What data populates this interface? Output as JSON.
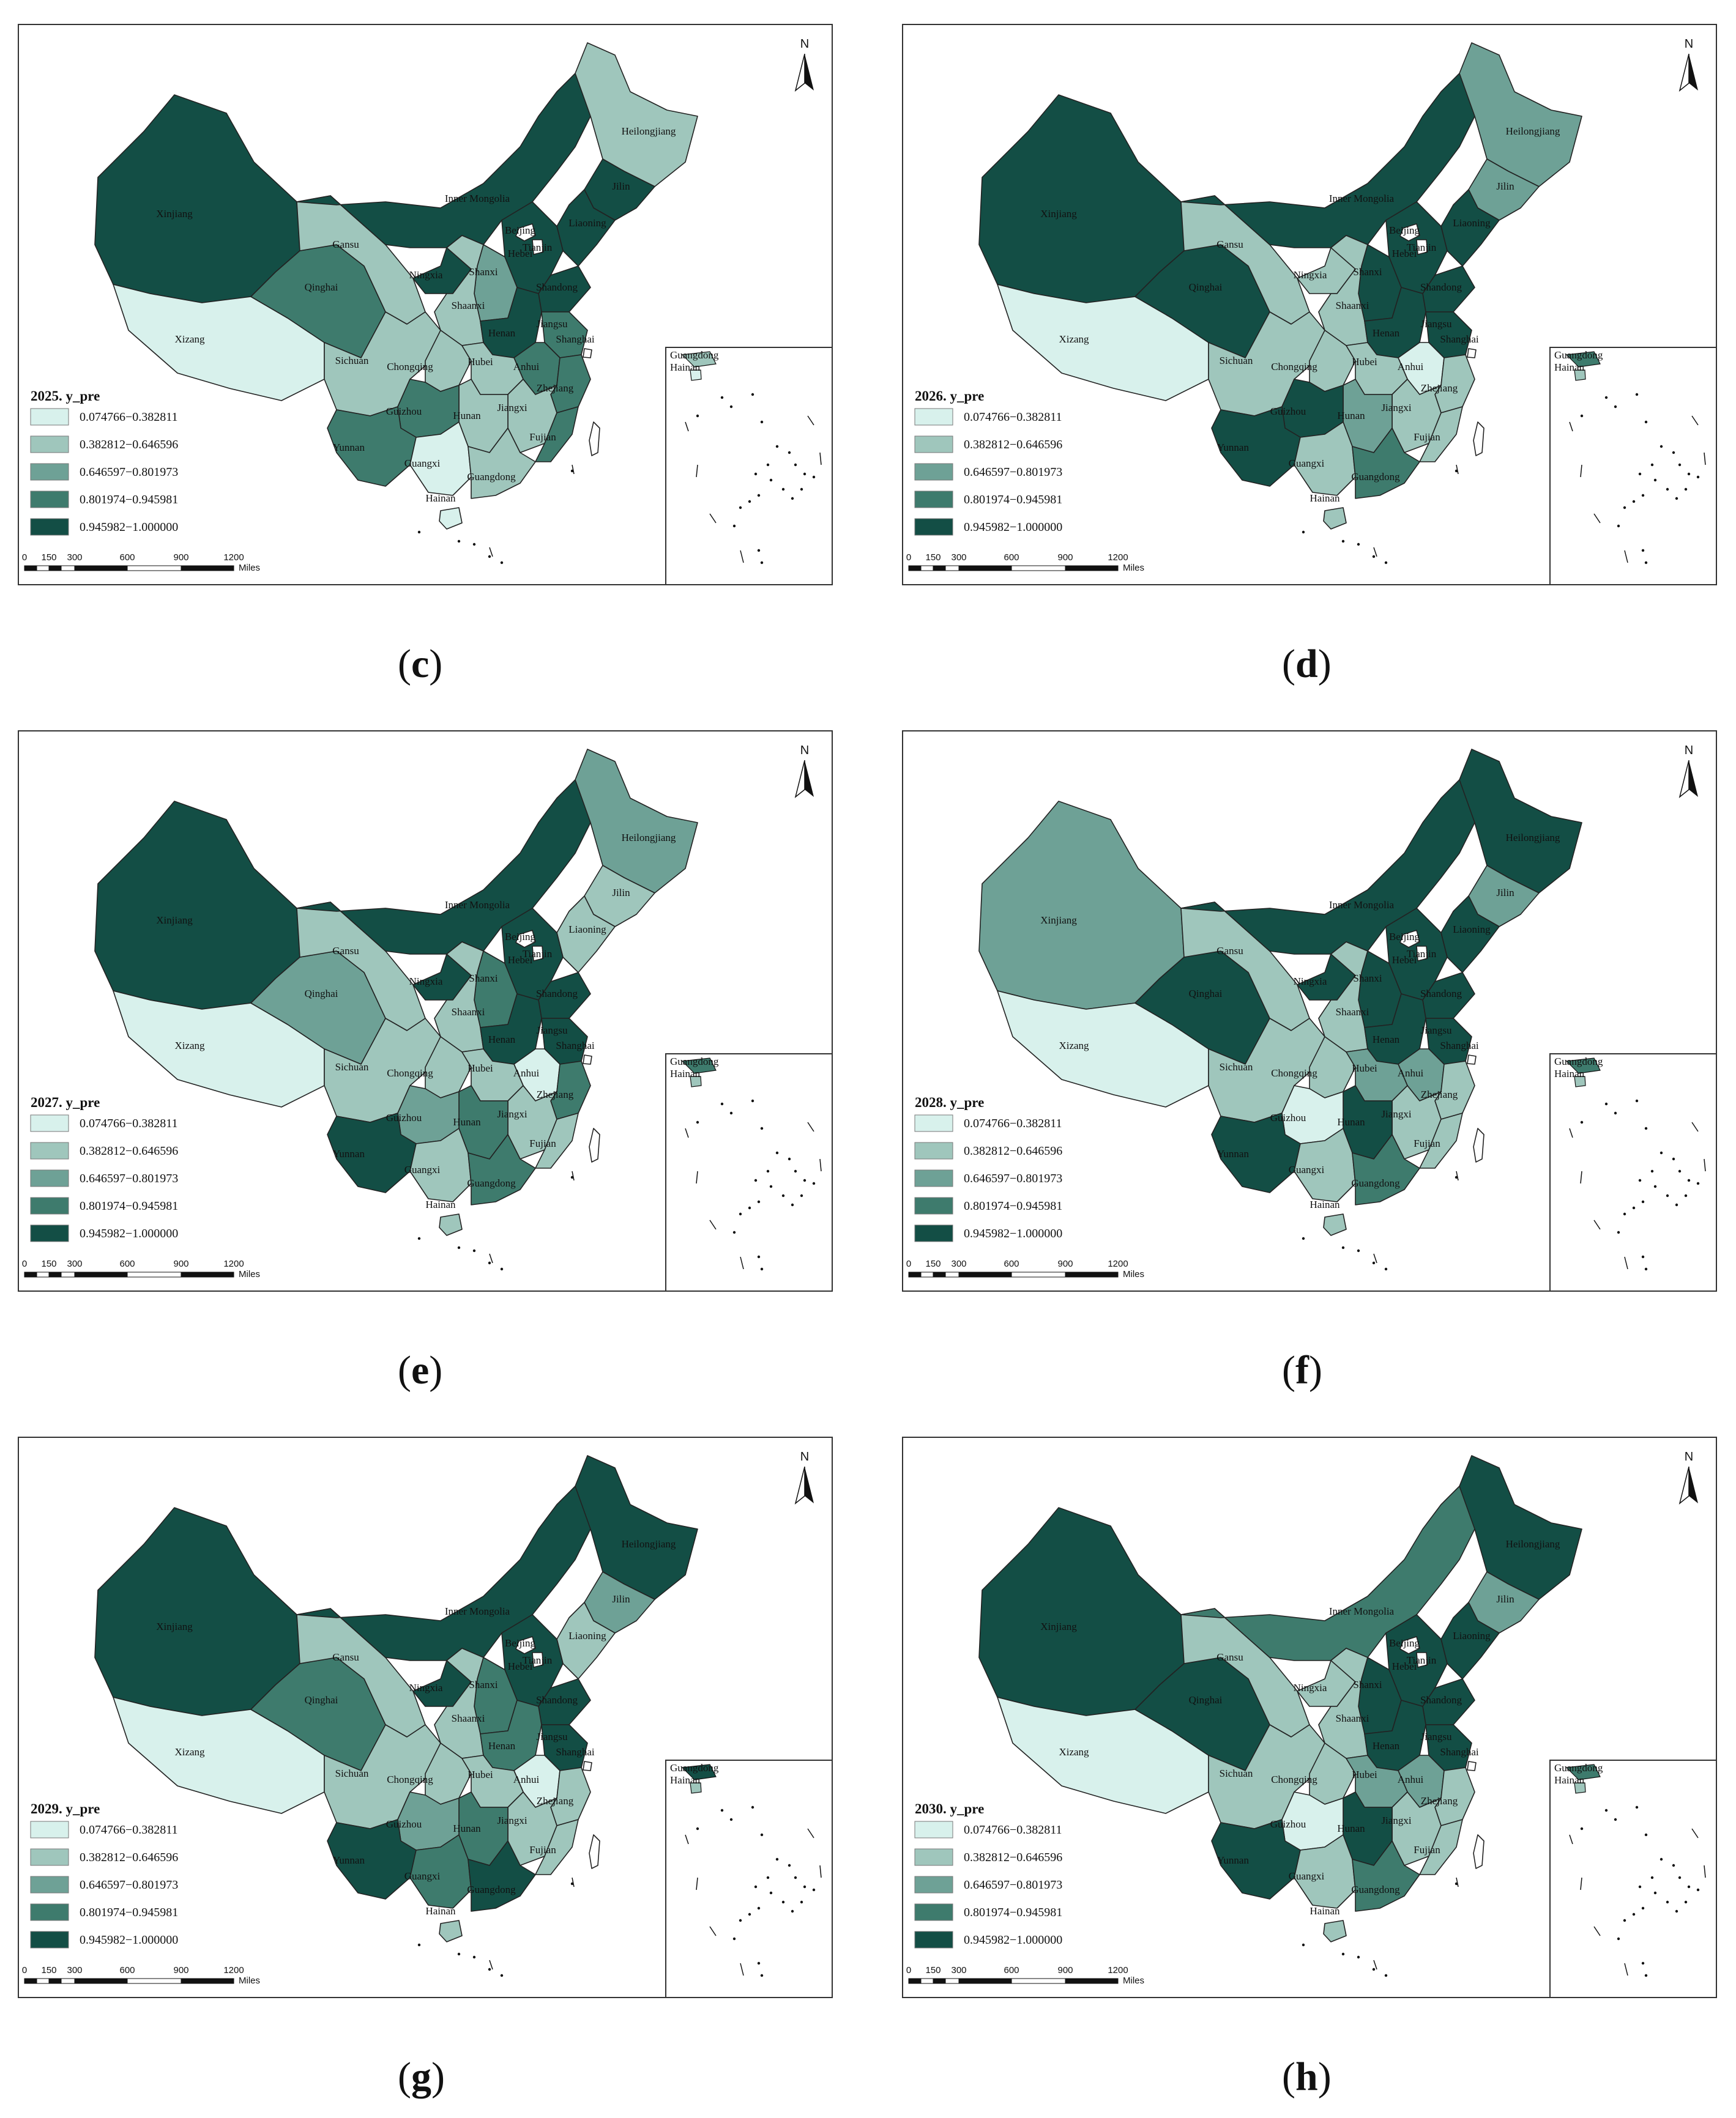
{
  "colors": {
    "c1": "#d8f1ec",
    "c2": "#9fc6bc",
    "c3": "#6ea196",
    "c4": "#3e7b6d",
    "c5": "#134e45",
    "stroke": "#222222"
  },
  "legend_ranges": [
    "0.074766−0.382811",
    "0.382812−0.646596",
    "0.646597−0.801973",
    "0.801974−0.945981",
    "0.945982−1.000000"
  ],
  "scale_ticks": [
    "0",
    "150",
    "300",
    "600",
    "900",
    "1200"
  ],
  "scale_unit": "Miles",
  "north_label": "N",
  "inset_labels": [
    "Guangdong",
    "Hainan"
  ],
  "province_labels": [
    "Xinjiang",
    "Xizang",
    "Qinghai",
    "Gansu",
    "Inner Mongolia",
    "Heilongjiang",
    "Jilin",
    "Liaoning",
    "Beijing",
    "Tianjin",
    "Hebei",
    "Shanxi",
    "Shandong",
    "Ningxia",
    "Shaanxi",
    "Henan",
    "Jiangsu",
    "Anhui",
    "Shanghai",
    "Sichuan",
    "Chongqing",
    "Hubei",
    "Zhejiang",
    "Jiangxi",
    "Hunan",
    "Guizhou",
    "Fujian",
    "Yunnan",
    "Guangxi",
    "Guangdong",
    "Hainan"
  ],
  "panels": [
    {
      "letter": "c",
      "title": "2025. y_pre",
      "classes": {
        "Xinjiang": 5,
        "Xizang": 1,
        "Qinghai": 4,
        "Gansu": 2,
        "Inner Mongolia": 5,
        "Heilongjiang": 2,
        "Jilin": 5,
        "Liaoning": 5,
        "Hebei": 5,
        "Shanxi": 3,
        "Shandong": 5,
        "Ningxia": 5,
        "Shaanxi": 2,
        "Henan": 5,
        "Jiangsu": 4,
        "Anhui": 4,
        "Sichuan": 2,
        "Chongqing": 2,
        "Hubei": 2,
        "Zhejiang": 4,
        "Jiangxi": 2,
        "Hunan": 2,
        "Guizhou": 4,
        "Fujian": 4,
        "Yunnan": 4,
        "Guangxi": 1,
        "Guangdong": 2,
        "Hainan": 1
      }
    },
    {
      "letter": "d",
      "title": "2026. y_pre",
      "classes": {
        "Xinjiang": 5,
        "Xizang": 1,
        "Qinghai": 5,
        "Gansu": 2,
        "Inner Mongolia": 5,
        "Heilongjiang": 3,
        "Jilin": 3,
        "Liaoning": 5,
        "Hebei": 5,
        "Shanxi": 5,
        "Shandong": 5,
        "Ningxia": 2,
        "Shaanxi": 2,
        "Henan": 5,
        "Jiangsu": 5,
        "Anhui": 1,
        "Sichuan": 2,
        "Chongqing": 2,
        "Hubei": 2,
        "Zhejiang": 2,
        "Jiangxi": 2,
        "Hunan": 3,
        "Guizhou": 5,
        "Fujian": 2,
        "Yunnan": 5,
        "Guangxi": 2,
        "Guangdong": 4,
        "Hainan": 2
      }
    },
    {
      "letter": "e",
      "title": "2027. y_pre",
      "classes": {
        "Xinjiang": 5,
        "Xizang": 1,
        "Qinghai": 3,
        "Gansu": 2,
        "Inner Mongolia": 5,
        "Heilongjiang": 3,
        "Jilin": 2,
        "Liaoning": 2,
        "Hebei": 5,
        "Shanxi": 4,
        "Shandong": 5,
        "Ningxia": 5,
        "Shaanxi": 2,
        "Henan": 5,
        "Jiangsu": 5,
        "Anhui": 1,
        "Sichuan": 2,
        "Chongqing": 2,
        "Hubei": 2,
        "Zhejiang": 4,
        "Jiangxi": 2,
        "Hunan": 4,
        "Guizhou": 3,
        "Fujian": 2,
        "Yunnan": 5,
        "Guangxi": 2,
        "Guangdong": 4,
        "Hainan": 2
      }
    },
    {
      "letter": "f",
      "title": "2028. y_pre",
      "classes": {
        "Xinjiang": 3,
        "Xizang": 1,
        "Qinghai": 5,
        "Gansu": 2,
        "Inner Mongolia": 5,
        "Heilongjiang": 5,
        "Jilin": 3,
        "Liaoning": 5,
        "Hebei": 5,
        "Shanxi": 5,
        "Shandong": 5,
        "Ningxia": 5,
        "Shaanxi": 2,
        "Henan": 5,
        "Jiangsu": 5,
        "Anhui": 3,
        "Sichuan": 2,
        "Chongqing": 2,
        "Hubei": 3,
        "Zhejiang": 2,
        "Jiangxi": 2,
        "Hunan": 5,
        "Guizhou": 1,
        "Fujian": 2,
        "Yunnan": 5,
        "Guangxi": 2,
        "Guangdong": 4,
        "Hainan": 2
      }
    },
    {
      "letter": "g",
      "title": "2029. y_pre",
      "classes": {
        "Xinjiang": 5,
        "Xizang": 1,
        "Qinghai": 4,
        "Gansu": 2,
        "Inner Mongolia": 5,
        "Heilongjiang": 5,
        "Jilin": 3,
        "Liaoning": 2,
        "Hebei": 5,
        "Shanxi": 4,
        "Shandong": 5,
        "Ningxia": 5,
        "Shaanxi": 2,
        "Henan": 4,
        "Jiangsu": 5,
        "Anhui": 1,
        "Sichuan": 2,
        "Chongqing": 2,
        "Hubei": 2,
        "Zhejiang": 2,
        "Jiangxi": 2,
        "Hunan": 4,
        "Guizhou": 3,
        "Fujian": 2,
        "Yunnan": 5,
        "Guangxi": 4,
        "Guangdong": 5,
        "Hainan": 2
      }
    },
    {
      "letter": "h",
      "title": "2030. y_pre",
      "classes": {
        "Xinjiang": 5,
        "Xizang": 1,
        "Qinghai": 5,
        "Gansu": 2,
        "Inner Mongolia": 4,
        "Heilongjiang": 5,
        "Jilin": 3,
        "Liaoning": 5,
        "Hebei": 5,
        "Shanxi": 5,
        "Shandong": 5,
        "Ningxia": 2,
        "Shaanxi": 2,
        "Henan": 5,
        "Jiangsu": 5,
        "Anhui": 3,
        "Sichuan": 2,
        "Chongqing": 2,
        "Hubei": 3,
        "Zhejiang": 2,
        "Jiangxi": 2,
        "Hunan": 5,
        "Guizhou": 1,
        "Fujian": 2,
        "Yunnan": 5,
        "Guangxi": 2,
        "Guangdong": 4,
        "Hainan": 2
      }
    }
  ]
}
